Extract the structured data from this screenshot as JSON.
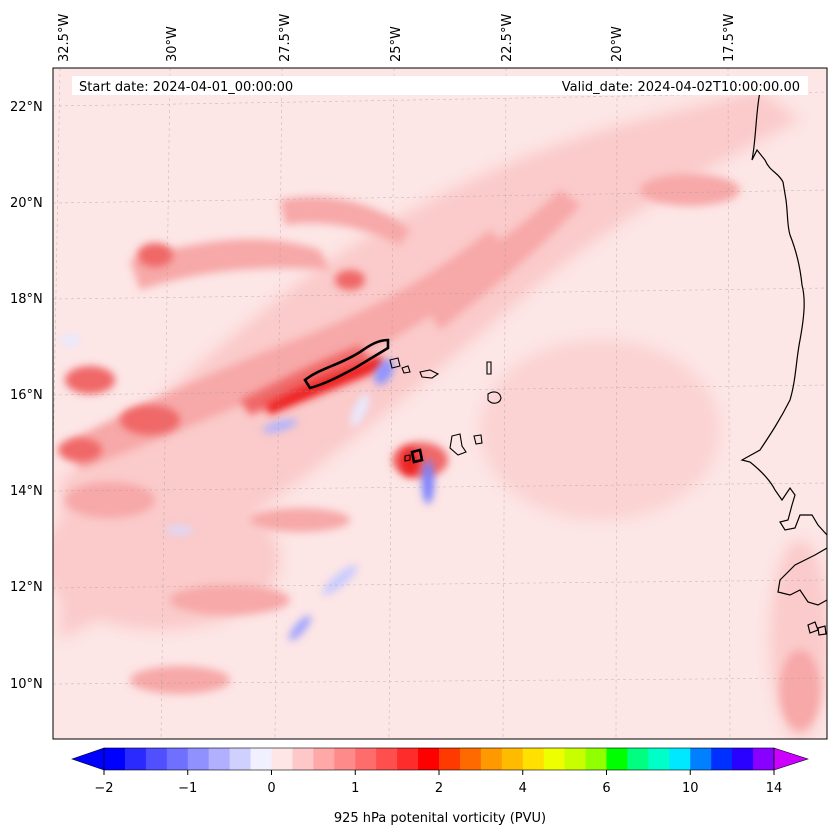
{
  "map": {
    "start_date": "Start date: 2024-04-01_00:00:00",
    "valid_date": "Valid_date: 2024-04-02T10:00:00.00",
    "lon_labels": [
      "32.5°W",
      "30°W",
      "27.5°W",
      "25°W",
      "22.5°W",
      "20°W",
      "17.5°W"
    ],
    "lat_labels": [
      "22°N",
      "20°N",
      "18°N",
      "16°N",
      "14°N",
      "12°N",
      "10°N"
    ],
    "field": "potential vorticity",
    "colors": {
      "background_field": "#fde6e6",
      "weak_positive": "#fbcaca",
      "moderate_positive": "#f7a0a0",
      "strong_positive": "#f06060",
      "very_strong": "#ee1c1c",
      "negative_weak": "#e4e6ff",
      "negative_strong": "#8f95ff"
    }
  },
  "colorbar": {
    "title": "925 hPa potenital vorticity (PVU)",
    "tick_labels": [
      "−2",
      "−1",
      "0",
      "1",
      "2",
      "4",
      "6",
      "10",
      "14"
    ],
    "colors": [
      "#0000ff",
      "#2a2aff",
      "#5050ff",
      "#7070ff",
      "#9090ff",
      "#b0b0ff",
      "#d0d0ff",
      "#f0f0ff",
      "#ffe6e6",
      "#ffc8c8",
      "#ffa8a8",
      "#ff8a8a",
      "#ff6c6c",
      "#ff4e4e",
      "#ff2c2c",
      "#ff0000",
      "#ff3a00",
      "#ff6a00",
      "#ff9900",
      "#ffbb00",
      "#ffe000",
      "#eeff00",
      "#c8ff00",
      "#90ff00",
      "#00ff00",
      "#00ff80",
      "#00ffc8",
      "#00e8ff",
      "#0080ff",
      "#0030ff",
      "#2a00ff",
      "#8800ff"
    ],
    "extend_low": "#0000ff",
    "extend_high": "#cc00ff"
  }
}
